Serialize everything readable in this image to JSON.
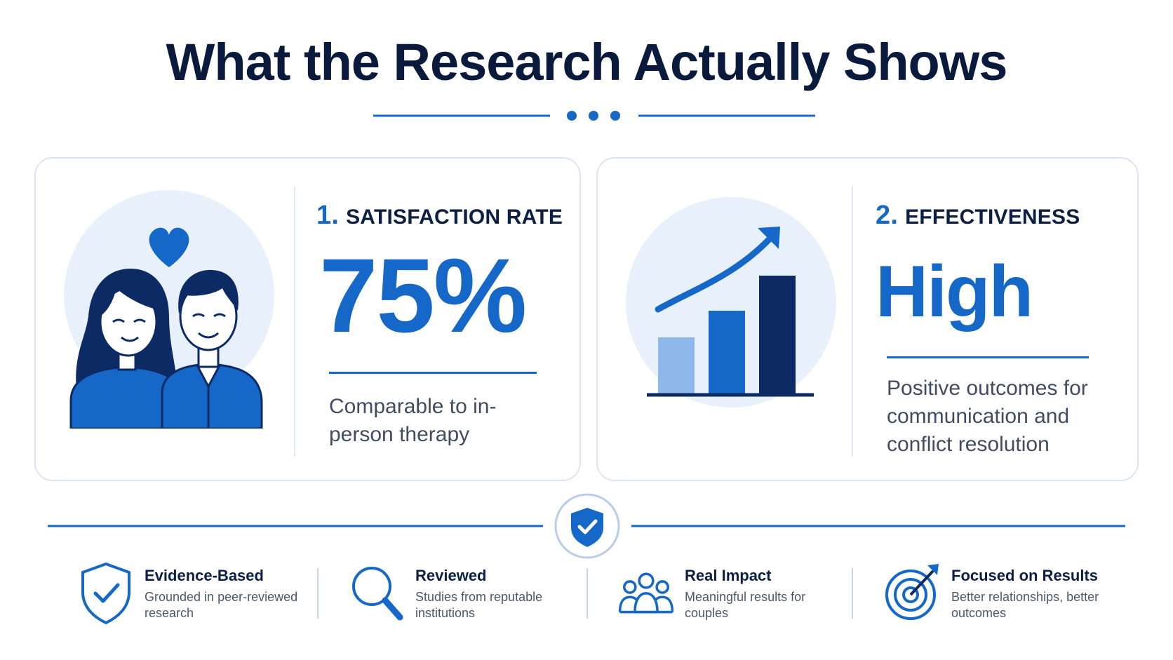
{
  "page": {
    "title": "What the Research Actually Shows"
  },
  "colors": {
    "primary": "#1668c8",
    "navy": "#0a1a3c",
    "light_blue": "#e8f0fb",
    "bar_light": "#8fb8ea",
    "bar_mid": "#1668c8",
    "bar_dark": "#0c2a63"
  },
  "stats": [
    {
      "number": "1.",
      "heading": "SATISFACTION RATE",
      "value": "75%",
      "description": "Comparable to in-person therapy",
      "icon": "couple-heart-icon"
    },
    {
      "number": "2.",
      "heading": "EFFECTIVENESS",
      "value": "High",
      "description": "Positive outcomes for communication and conflict resolution",
      "icon": "rising-bar-chart-icon"
    }
  ],
  "divider_icon": "shield-check-icon",
  "features": [
    {
      "icon": "shield-check-outline-icon",
      "title": "Evidence-Based",
      "description": "Grounded in peer-reviewed research"
    },
    {
      "icon": "magnifier-icon",
      "title": "Reviewed",
      "description": "Studies from reputable institutions"
    },
    {
      "icon": "group-people-icon",
      "title": "Real Impact",
      "description": "Meaningful results for couples"
    },
    {
      "icon": "target-arrow-icon",
      "title": "Focused on Results",
      "description": "Better relationships, better outcomes"
    }
  ]
}
